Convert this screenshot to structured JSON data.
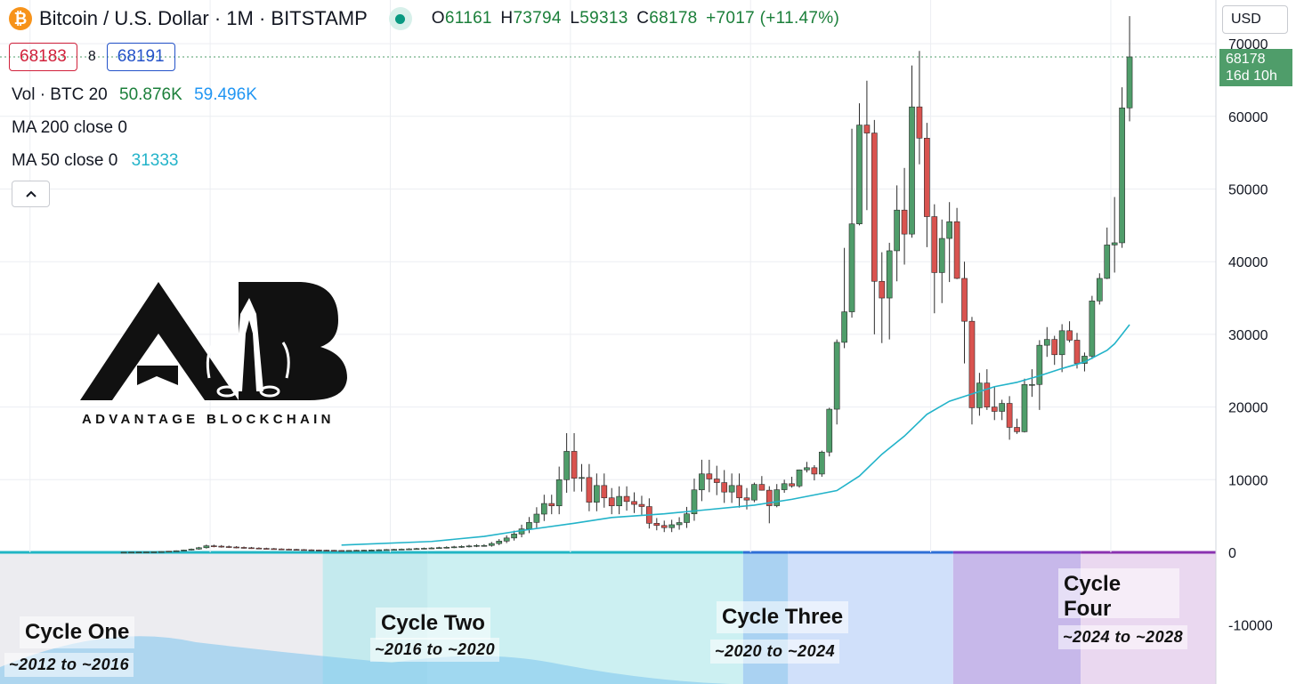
{
  "header": {
    "title": "Bitcoin / U.S. Dollar · 1M · BITSTAMP",
    "btc_icon": "bitcoin-icon",
    "status_icon": "market-open-dot-icon",
    "ohlc": {
      "o_label": "O",
      "o": "61161",
      "h_label": "H",
      "h": "73794",
      "l_label": "L",
      "l": "59313",
      "c_label": "C",
      "c": "68178",
      "change": "+7017 (+11.47%)"
    },
    "bid": "68183",
    "spread": "8",
    "ask": "68191"
  },
  "indicators": {
    "volume": {
      "label": "Vol · BTC 20",
      "v1": "50.876K",
      "v2": "59.496K"
    },
    "ma200": {
      "label": "MA 200 close 0"
    },
    "ma50": {
      "label": "MA 50 close 0",
      "value": "31333"
    },
    "collapse_icon": "chevron-up-icon"
  },
  "currency_button": {
    "label": "USD"
  },
  "price_tag": {
    "price": "68178",
    "countdown": "16d 10h"
  },
  "watermark": {
    "brand": "ADVANTAGE BLOCKCHAIN",
    "logo_icon": "advantage-blockchain-logo-icon"
  },
  "cycles": [
    {
      "title": "Cycle One",
      "range": "~2012 to ~2016"
    },
    {
      "title": "Cycle Two",
      "range": "~2016 to ~2020"
    },
    {
      "title": "Cycle Three",
      "range": "~2020 to ~2024"
    },
    {
      "title": "Cycle Four",
      "range": "~2024 to ~2028"
    }
  ],
  "colors": {
    "up": "#4f9d6a",
    "down": "#d9534f",
    "ma50": "#22b3c9",
    "bid": "#d1213b",
    "ask": "#2453c9"
  },
  "chart_data": {
    "type": "candlestick",
    "title": "Bitcoin / U.S. Dollar · 1M · BITSTAMP",
    "ylim": [
      -18000,
      74000
    ],
    "y_ticks": [
      "-10000",
      "0",
      "10000",
      "20000",
      "30000",
      "40000",
      "50000",
      "60000",
      "70000"
    ],
    "x_range_months": [
      "2011-09",
      "2025-03"
    ],
    "last_price": 68178,
    "candles": [
      {
        "t": "2020-01",
        "o": 7200,
        "h": 9600,
        "l": 6900,
        "c": 9350
      },
      {
        "t": "2020-02",
        "o": 9350,
        "h": 10500,
        "l": 8500,
        "c": 8550
      },
      {
        "t": "2020-03",
        "o": 8550,
        "h": 9100,
        "l": 4000,
        "c": 6420
      },
      {
        "t": "2020-04",
        "o": 6420,
        "h": 9400,
        "l": 6200,
        "c": 8620
      },
      {
        "t": "2020-05",
        "o": 8620,
        "h": 10000,
        "l": 8200,
        "c": 9450
      },
      {
        "t": "2020-06",
        "o": 9450,
        "h": 10400,
        "l": 8900,
        "c": 9140
      },
      {
        "t": "2020-07",
        "o": 9140,
        "h": 11400,
        "l": 8900,
        "c": 11350
      },
      {
        "t": "2020-08",
        "o": 11350,
        "h": 12450,
        "l": 11000,
        "c": 11650
      },
      {
        "t": "2020-09",
        "o": 11650,
        "h": 12000,
        "l": 9900,
        "c": 10780
      },
      {
        "t": "2020-10",
        "o": 10780,
        "h": 14000,
        "l": 10400,
        "c": 13800
      },
      {
        "t": "2020-11",
        "o": 13800,
        "h": 19900,
        "l": 13200,
        "c": 19700
      },
      {
        "t": "2020-12",
        "o": 19700,
        "h": 29300,
        "l": 17600,
        "c": 28900
      },
      {
        "t": "2021-01",
        "o": 28900,
        "h": 41900,
        "l": 28100,
        "c": 33100
      },
      {
        "t": "2021-02",
        "o": 33100,
        "h": 58300,
        "l": 32300,
        "c": 45200
      },
      {
        "t": "2021-03",
        "o": 45200,
        "h": 61800,
        "l": 45000,
        "c": 58800
      },
      {
        "t": "2021-04",
        "o": 58800,
        "h": 64900,
        "l": 47100,
        "c": 57700
      },
      {
        "t": "2021-05",
        "o": 57700,
        "h": 59500,
        "l": 30000,
        "c": 37300
      },
      {
        "t": "2021-06",
        "o": 37300,
        "h": 41300,
        "l": 28800,
        "c": 35000
      },
      {
        "t": "2021-07",
        "o": 35000,
        "h": 42600,
        "l": 29300,
        "c": 41500
      },
      {
        "t": "2021-08",
        "o": 41500,
        "h": 50500,
        "l": 37300,
        "c": 47100
      },
      {
        "t": "2021-09",
        "o": 47100,
        "h": 52900,
        "l": 39600,
        "c": 43800
      },
      {
        "t": "2021-10",
        "o": 43800,
        "h": 67000,
        "l": 43300,
        "c": 61300
      },
      {
        "t": "2021-11",
        "o": 61300,
        "h": 69000,
        "l": 53400,
        "c": 57000
      },
      {
        "t": "2021-12",
        "o": 57000,
        "h": 59100,
        "l": 42000,
        "c": 46200
      },
      {
        "t": "2022-01",
        "o": 46200,
        "h": 47900,
        "l": 32900,
        "c": 38500
      },
      {
        "t": "2022-02",
        "o": 38500,
        "h": 45800,
        "l": 34300,
        "c": 43200
      },
      {
        "t": "2022-03",
        "o": 43200,
        "h": 48200,
        "l": 37200,
        "c": 45500
      },
      {
        "t": "2022-04",
        "o": 45500,
        "h": 47400,
        "l": 37600,
        "c": 37700
      },
      {
        "t": "2022-05",
        "o": 37700,
        "h": 40000,
        "l": 26000,
        "c": 31800
      },
      {
        "t": "2022-06",
        "o": 31800,
        "h": 32400,
        "l": 17600,
        "c": 19900
      },
      {
        "t": "2022-07",
        "o": 19900,
        "h": 24700,
        "l": 18800,
        "c": 23300
      },
      {
        "t": "2022-08",
        "o": 23300,
        "h": 25200,
        "l": 19600,
        "c": 20000
      },
      {
        "t": "2022-09",
        "o": 20000,
        "h": 22800,
        "l": 18200,
        "c": 19400
      },
      {
        "t": "2022-10",
        "o": 19400,
        "h": 21000,
        "l": 18200,
        "c": 20500
      },
      {
        "t": "2022-11",
        "o": 20500,
        "h": 21500,
        "l": 15500,
        "c": 17200
      },
      {
        "t": "2022-12",
        "o": 17200,
        "h": 18400,
        "l": 16300,
        "c": 16600
      },
      {
        "t": "2023-01",
        "o": 16600,
        "h": 23900,
        "l": 16500,
        "c": 23100
      },
      {
        "t": "2023-02",
        "o": 23100,
        "h": 25200,
        "l": 21400,
        "c": 23100
      },
      {
        "t": "2023-03",
        "o": 23100,
        "h": 29200,
        "l": 19600,
        "c": 28500
      },
      {
        "t": "2023-04",
        "o": 28500,
        "h": 31000,
        "l": 26900,
        "c": 29300
      },
      {
        "t": "2023-05",
        "o": 29300,
        "h": 29800,
        "l": 25800,
        "c": 27200
      },
      {
        "t": "2023-06",
        "o": 27200,
        "h": 31400,
        "l": 24800,
        "c": 30500
      },
      {
        "t": "2023-07",
        "o": 30500,
        "h": 31800,
        "l": 28900,
        "c": 29200
      },
      {
        "t": "2023-08",
        "o": 29200,
        "h": 30200,
        "l": 25300,
        "c": 26000
      },
      {
        "t": "2023-09",
        "o": 26000,
        "h": 27500,
        "l": 24900,
        "c": 27000
      },
      {
        "t": "2023-10",
        "o": 27000,
        "h": 35300,
        "l": 26600,
        "c": 34600
      },
      {
        "t": "2023-11",
        "o": 34600,
        "h": 38400,
        "l": 34100,
        "c": 37700
      },
      {
        "t": "2023-12",
        "o": 37700,
        "h": 44700,
        "l": 37600,
        "c": 42300
      },
      {
        "t": "2024-01",
        "o": 42300,
        "h": 48900,
        "l": 38500,
        "c": 42600
      },
      {
        "t": "2024-02",
        "o": 42600,
        "h": 64000,
        "l": 41900,
        "c": 61161
      },
      {
        "t": "2024-03",
        "o": 61161,
        "h": 73794,
        "l": 59313,
        "c": 68178
      }
    ],
    "early_candles_note": "",
    "ma50": [
      {
        "t": "2015-06",
        "v": 1000
      },
      {
        "t": "2016-06",
        "v": 1500
      },
      {
        "t": "2017-01",
        "v": 2200
      },
      {
        "t": "2017-06",
        "v": 3000
      },
      {
        "t": "2018-01",
        "v": 4000
      },
      {
        "t": "2018-06",
        "v": 4800
      },
      {
        "t": "2019-01",
        "v": 5300
      },
      {
        "t": "2019-06",
        "v": 5800
      },
      {
        "t": "2020-01",
        "v": 6500
      },
      {
        "t": "2020-06",
        "v": 7300
      },
      {
        "t": "2020-12",
        "v": 8500
      },
      {
        "t": "2021-03",
        "v": 10500
      },
      {
        "t": "2021-06",
        "v": 13500
      },
      {
        "t": "2021-09",
        "v": 16000
      },
      {
        "t": "2021-12",
        "v": 19000
      },
      {
        "t": "2022-03",
        "v": 20800
      },
      {
        "t": "2022-06",
        "v": 21800
      },
      {
        "t": "2022-09",
        "v": 22800
      },
      {
        "t": "2022-12",
        "v": 23400
      },
      {
        "t": "2023-03",
        "v": 24300
      },
      {
        "t": "2023-06",
        "v": 25300
      },
      {
        "t": "2023-09",
        "v": 26200
      },
      {
        "t": "2023-12",
        "v": 27800
      },
      {
        "t": "2024-01",
        "v": 28700
      },
      {
        "t": "2024-02",
        "v": 30000
      },
      {
        "t": "2024-03",
        "v": 31333
      }
    ],
    "cycle_bands": [
      {
        "from": "2011-09",
        "to": "2015-04",
        "color": "#ececf0"
      },
      {
        "from": "2015-04",
        "to": "2016-06",
        "color": "#c4eaee"
      },
      {
        "from": "2016-06",
        "to": "2019-12",
        "color": "#ccf0f2"
      },
      {
        "from": "2019-12",
        "to": "2020-06",
        "color": "#aad2f2"
      },
      {
        "from": "2020-06",
        "to": "2022-04",
        "color": "#d0e0fa"
      },
      {
        "from": "2022-04",
        "to": "2023-09",
        "color": "#c7b8ea"
      },
      {
        "from": "2023-09",
        "to": "2025-03",
        "color": "#ead8f0"
      }
    ]
  }
}
